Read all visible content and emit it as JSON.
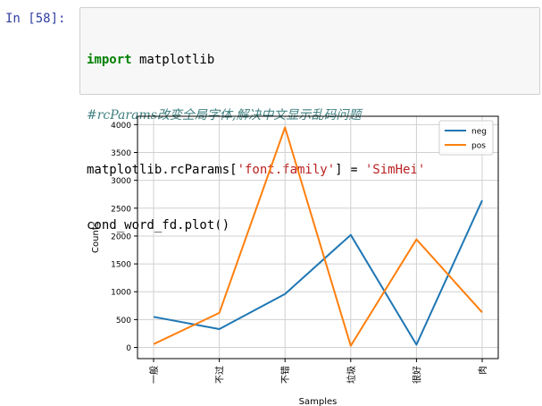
{
  "notebook": {
    "prompt": "In [58]:",
    "code": {
      "line1_keyword": "import",
      "line1_rest": " matplotlib",
      "line2_comment": "#rcParams改变全局字体,解决中文显示乱码问题",
      "line3_pre": "matplotlib.rcParams[",
      "line3_str1": "'font.family'",
      "line3_mid": "] = ",
      "line3_str2": "'SimHei'",
      "line4": "cond_word_fd.plot()"
    }
  },
  "colors": {
    "neg": "#1f77b4",
    "pos": "#ff7f0e"
  },
  "chart_data": {
    "type": "line",
    "categories": [
      "一般",
      "不过",
      "不错",
      "垃圾",
      "很好",
      "肉"
    ],
    "series": [
      {
        "name": "neg",
        "values": [
          550,
          330,
          960,
          2020,
          50,
          2640
        ]
      },
      {
        "name": "pos",
        "values": [
          60,
          620,
          3950,
          30,
          1940,
          630
        ]
      }
    ],
    "xlabel": "Samples",
    "ylabel": "Counts",
    "yticks": [
      0,
      500,
      1000,
      1500,
      2000,
      2500,
      3000,
      3500,
      4000
    ],
    "ylim": [
      -200,
      4150
    ],
    "grid": true,
    "legend_position": "top-right",
    "xtick_rotation": "vertical"
  }
}
